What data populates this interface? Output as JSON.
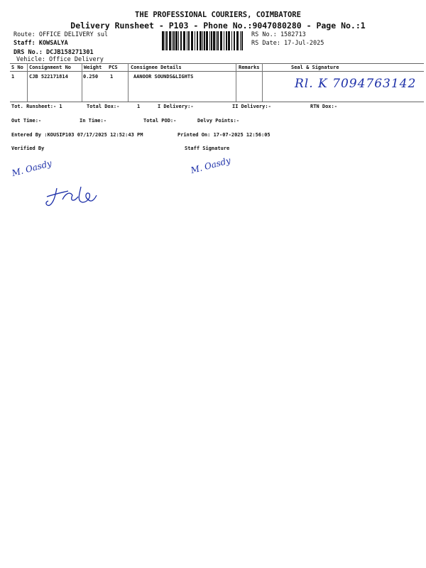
{
  "header": {
    "company": "THE PROFESSIONAL COURIERS, COIMBATORE",
    "subtitle": "Delivery Runsheet - P103 - Phone No.:9047080280 - Page No.:1",
    "route": "Route: OFFICE DELIVERY sul",
    "staff": "Staff: KOWSALYA",
    "drs_no": "DRS No.: DCJB158271301",
    "vehicle": "Vehicle: Office Delivery",
    "rs_no": "RS No.: 1582713",
    "rs_date": "RS Date: 17-Jul-2025"
  },
  "table": {
    "columns": [
      "S No",
      "Consignment No",
      "Weight",
      "PCS",
      "Consignee Details",
      "Remarks",
      "Seal & Signature"
    ],
    "rows": [
      {
        "sno": "1",
        "consignment": "CJB 522171814",
        "weight": "0.250",
        "pcs": "1",
        "consignee": "AANOOR SOUNDS&LIGHTS",
        "remarks": "",
        "signature": "Rl. K 7094763142"
      }
    ]
  },
  "totals": {
    "tot_runsheet": "Tot. Runsheet:- 1",
    "total_dox": "Total Dox:-",
    "total_dox_value": "1",
    "i_delivery": "I Delivery:-",
    "ii_delivery": "II Delivery:-",
    "rtn_dox": "RTN Dox:-",
    "out_time": "Out Time:-",
    "in_time": "In Time:-",
    "total_pod": "Total POD:-",
    "delvy_points": "Delvy Points:-"
  },
  "footer": {
    "entered_by": "Entered By :KOUSIP103 07/17/2025 12:52:43 PM",
    "printed_on": "Printed On: 17-07-2025 12:56:05",
    "verified_by": "Verified By",
    "staff_signature": "Staff Signature",
    "verified_sign": "M. Oasdy",
    "staff_sign": "M. Oasdy"
  },
  "colors": {
    "ink": "#1c2fa8"
  }
}
